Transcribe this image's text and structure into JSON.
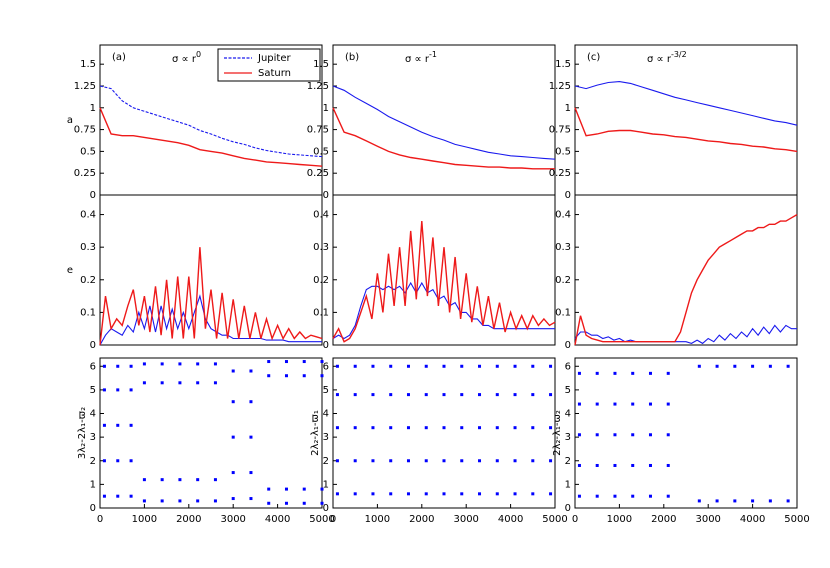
{
  "chart_data": [
    {
      "type": "line",
      "title": "(a)",
      "annotation": "σ ∝ r",
      "annotation_exponent": "0",
      "ylabel": "a",
      "legend": "top-right",
      "x": [
        0,
        250,
        500,
        750,
        1000,
        1250,
        1500,
        1750,
        2000,
        2250,
        2500,
        2750,
        3000,
        3250,
        3500,
        3750,
        4000,
        4250,
        4500,
        4750,
        5000
      ],
      "xlim": [
        0,
        5000
      ],
      "ylim": [
        0,
        1.72
      ],
      "yticks": [
        0,
        0.25,
        0.5,
        0.75,
        1,
        1.25,
        1.5
      ],
      "series": [
        {
          "name": "Jupiter",
          "color": "#1a1aee",
          "dashed": true,
          "values": [
            1.25,
            1.22,
            1.08,
            1.0,
            0.96,
            0.92,
            0.88,
            0.84,
            0.8,
            0.74,
            0.7,
            0.65,
            0.61,
            0.58,
            0.54,
            0.51,
            0.49,
            0.47,
            0.46,
            0.45,
            0.44
          ]
        },
        {
          "name": "Saturn",
          "color": "#ee1a1a",
          "values": [
            1.0,
            0.7,
            0.68,
            0.68,
            0.66,
            0.64,
            0.62,
            0.6,
            0.57,
            0.52,
            0.5,
            0.48,
            0.45,
            0.42,
            0.4,
            0.38,
            0.37,
            0.36,
            0.35,
            0.34,
            0.33
          ]
        }
      ]
    },
    {
      "type": "line",
      "ylabel": "e",
      "x": [
        0,
        125,
        250,
        375,
        500,
        625,
        750,
        875,
        1000,
        1125,
        1250,
        1375,
        1500,
        1625,
        1750,
        1875,
        2000,
        2125,
        2250,
        2375,
        2500,
        2625,
        2750,
        2875,
        3000,
        3125,
        3250,
        3375,
        3500,
        3625,
        3750,
        3875,
        4000,
        4125,
        4250,
        4375,
        4500,
        4625,
        4750,
        4875,
        5000
      ],
      "xlim": [
        0,
        5000
      ],
      "ylim": [
        0,
        0.46
      ],
      "yticks": [
        0,
        0.1,
        0.2,
        0.3,
        0.4
      ],
      "series": [
        {
          "name": "Jupiter",
          "color": "#1a1aee",
          "values": [
            0,
            0.03,
            0.05,
            0.04,
            0.03,
            0.06,
            0.04,
            0.1,
            0.05,
            0.12,
            0.04,
            0.12,
            0.05,
            0.11,
            0.05,
            0.1,
            0.05,
            0.1,
            0.15,
            0.08,
            0.05,
            0.04,
            0.03,
            0.03,
            0.02,
            0.02,
            0.02,
            0.02,
            0.02,
            0.02,
            0.015,
            0.015,
            0.015,
            0.015,
            0.01,
            0.01,
            0.01,
            0.01,
            0.01,
            0.01,
            0.01
          ]
        },
        {
          "name": "Saturn",
          "color": "#ee1a1a",
          "values": [
            0,
            0.15,
            0.05,
            0.08,
            0.06,
            0.12,
            0.17,
            0.06,
            0.15,
            0.04,
            0.18,
            0.03,
            0.2,
            0.02,
            0.21,
            0.02,
            0.21,
            0.02,
            0.3,
            0.05,
            0.17,
            0.02,
            0.16,
            0.02,
            0.14,
            0.02,
            0.12,
            0.02,
            0.1,
            0.02,
            0.08,
            0.02,
            0.06,
            0.02,
            0.05,
            0.02,
            0.04,
            0.02,
            0.03,
            0.025,
            0.02
          ]
        }
      ]
    },
    {
      "type": "scatter",
      "ylabel": "3λ₂-2λ₁-ϖ₂",
      "color": "#0000ff",
      "x": [
        100,
        100,
        100,
        100,
        100,
        400,
        400,
        400,
        400,
        400,
        700,
        700,
        700,
        700,
        700,
        1000,
        1000,
        1000,
        1000,
        1400,
        1400,
        1400,
        1400,
        1800,
        1800,
        1800,
        1800,
        2200,
        2200,
        2200,
        2200,
        2600,
        2600,
        2600,
        2600,
        3000,
        3000,
        3000,
        3000,
        3000,
        3400,
        3400,
        3400,
        3400,
        3400,
        3800,
        3800,
        3800,
        3800,
        4200,
        4200,
        4200,
        4200,
        4600,
        4600,
        4600,
        4600,
        5000,
        5000,
        5000,
        5000
      ],
      "values": [
        0.5,
        2,
        3.5,
        5,
        6,
        0.5,
        2,
        3.5,
        5,
        6,
        0.5,
        2,
        3.5,
        5,
        6,
        0.3,
        1.2,
        5.3,
        6.1,
        0.3,
        1.2,
        5.3,
        6.1,
        0.3,
        1.2,
        5.3,
        6.1,
        0.3,
        1.2,
        5.3,
        6.1,
        0.3,
        1.2,
        5.3,
        6.1,
        0.4,
        1.5,
        3,
        4.5,
        5.8,
        0.4,
        1.5,
        3,
        4.5,
        5.8,
        0.2,
        0.8,
        5.6,
        6.2,
        0.2,
        0.8,
        5.6,
        6.2,
        0.2,
        0.8,
        5.6,
        6.2,
        0.2,
        0.8,
        5.6,
        6.2
      ],
      "xlim": [
        0,
        5000
      ],
      "ylim": [
        0,
        6.35
      ],
      "yticks": [
        0,
        1,
        2,
        3,
        4,
        5,
        6
      ],
      "xticks": [
        0,
        1000,
        2000,
        3000,
        4000,
        5000
      ]
    },
    {
      "type": "line",
      "title": "(b)",
      "annotation": "σ ∝ r",
      "annotation_exponent": "-1",
      "x": [
        0,
        250,
        500,
        750,
        1000,
        1250,
        1500,
        1750,
        2000,
        2250,
        2500,
        2750,
        3000,
        3250,
        3500,
        3750,
        4000,
        4250,
        4500,
        4750,
        5000
      ],
      "xlim": [
        0,
        5000
      ],
      "ylim": [
        0,
        1.72
      ],
      "yticks": [
        0,
        0.25,
        0.5,
        0.75,
        1,
        1.25,
        1.5
      ],
      "series": [
        {
          "name": "Jupiter",
          "color": "#1a1aee",
          "values": [
            1.25,
            1.2,
            1.12,
            1.05,
            0.98,
            0.9,
            0.84,
            0.78,
            0.72,
            0.67,
            0.63,
            0.58,
            0.55,
            0.52,
            0.49,
            0.47,
            0.45,
            0.44,
            0.43,
            0.42,
            0.41
          ]
        },
        {
          "name": "Saturn",
          "color": "#ee1a1a",
          "values": [
            1.0,
            0.72,
            0.68,
            0.62,
            0.56,
            0.5,
            0.46,
            0.43,
            0.41,
            0.39,
            0.37,
            0.35,
            0.34,
            0.33,
            0.32,
            0.32,
            0.31,
            0.31,
            0.3,
            0.3,
            0.3
          ]
        }
      ]
    },
    {
      "type": "line",
      "x": [
        0,
        125,
        250,
        375,
        500,
        625,
        750,
        875,
        1000,
        1125,
        1250,
        1375,
        1500,
        1625,
        1750,
        1875,
        2000,
        2125,
        2250,
        2375,
        2500,
        2625,
        2750,
        2875,
        3000,
        3125,
        3250,
        3375,
        3500,
        3625,
        3750,
        3875,
        4000,
        4125,
        4250,
        4375,
        4500,
        4625,
        4750,
        4875,
        5000
      ],
      "xlim": [
        0,
        5000
      ],
      "ylim": [
        0,
        0.46
      ],
      "yticks": [
        0,
        0.1,
        0.2,
        0.3,
        0.4
      ],
      "series": [
        {
          "name": "Jupiter",
          "color": "#1a1aee",
          "values": [
            0.02,
            0.03,
            0.02,
            0.03,
            0.06,
            0.12,
            0.17,
            0.18,
            0.18,
            0.17,
            0.18,
            0.17,
            0.18,
            0.16,
            0.19,
            0.16,
            0.19,
            0.16,
            0.17,
            0.14,
            0.15,
            0.12,
            0.13,
            0.1,
            0.1,
            0.08,
            0.08,
            0.06,
            0.06,
            0.05,
            0.05,
            0.05,
            0.05,
            0.05,
            0.05,
            0.05,
            0.05,
            0.05,
            0.05,
            0.05,
            0.05
          ]
        },
        {
          "name": "Saturn",
          "color": "#ee1a1a",
          "values": [
            0.02,
            0.05,
            0.01,
            0.02,
            0.05,
            0.1,
            0.15,
            0.08,
            0.22,
            0.1,
            0.28,
            0.12,
            0.3,
            0.12,
            0.35,
            0.14,
            0.38,
            0.15,
            0.33,
            0.12,
            0.3,
            0.1,
            0.27,
            0.08,
            0.22,
            0.07,
            0.18,
            0.06,
            0.15,
            0.05,
            0.13,
            0.04,
            0.1,
            0.05,
            0.09,
            0.05,
            0.09,
            0.06,
            0.08,
            0.06,
            0.07
          ]
        }
      ]
    },
    {
      "type": "scatter",
      "ylabel": "2λ₂-λ₁-ϖ₁",
      "color": "#0000ff",
      "x": [
        100,
        100,
        100,
        100,
        100,
        500,
        500,
        500,
        500,
        500,
        900,
        900,
        900,
        900,
        900,
        1300,
        1300,
        1300,
        1300,
        1300,
        1700,
        1700,
        1700,
        1700,
        1700,
        2100,
        2100,
        2100,
        2100,
        2100,
        2500,
        2500,
        2500,
        2500,
        2500,
        2900,
        2900,
        2900,
        2900,
        2900,
        3300,
        3300,
        3300,
        3300,
        3300,
        3700,
        3700,
        3700,
        3700,
        3700,
        4100,
        4100,
        4100,
        4100,
        4100,
        4500,
        4500,
        4500,
        4500,
        4500,
        4900,
        4900,
        4900,
        4900,
        4900
      ],
      "values": [
        0.6,
        2,
        3.4,
        4.8,
        6,
        0.6,
        2,
        3.4,
        4.8,
        6,
        0.6,
        2,
        3.4,
        4.8,
        6,
        0.6,
        2,
        3.4,
        4.8,
        6,
        0.6,
        2,
        3.4,
        4.8,
        6,
        0.6,
        2,
        3.4,
        4.8,
        6,
        0.6,
        2,
        3.4,
        4.8,
        6,
        0.6,
        2,
        3.4,
        4.8,
        6,
        0.6,
        2,
        3.4,
        4.8,
        6,
        0.6,
        2,
        3.4,
        4.8,
        6,
        0.6,
        2,
        3.4,
        4.8,
        6,
        0.6,
        2,
        3.4,
        4.8,
        6,
        0.6,
        2,
        3.4,
        4.8,
        6
      ],
      "xlim": [
        0,
        5000
      ],
      "ylim": [
        0,
        6.35
      ],
      "yticks": [
        0,
        1,
        2,
        3,
        4,
        5,
        6
      ],
      "xticks": [
        0,
        1000,
        2000,
        3000,
        4000,
        5000
      ]
    },
    {
      "type": "line",
      "title": "(c)",
      "annotation": "σ ∝ r",
      "annotation_exponent": "-3/2",
      "x": [
        0,
        250,
        500,
        750,
        1000,
        1250,
        1500,
        1750,
        2000,
        2250,
        2500,
        2750,
        3000,
        3250,
        3500,
        3750,
        4000,
        4250,
        4500,
        4750,
        5000
      ],
      "xlim": [
        0,
        5000
      ],
      "ylim": [
        0,
        1.72
      ],
      "yticks": [
        0,
        0.25,
        0.5,
        0.75,
        1,
        1.25,
        1.5
      ],
      "series": [
        {
          "name": "Jupiter",
          "color": "#1a1aee",
          "values": [
            1.25,
            1.22,
            1.26,
            1.29,
            1.3,
            1.28,
            1.24,
            1.2,
            1.16,
            1.12,
            1.09,
            1.06,
            1.03,
            1.0,
            0.97,
            0.94,
            0.91,
            0.88,
            0.85,
            0.83,
            0.8
          ]
        },
        {
          "name": "Saturn",
          "color": "#ee1a1a",
          "values": [
            1.0,
            0.68,
            0.7,
            0.73,
            0.74,
            0.74,
            0.72,
            0.7,
            0.69,
            0.67,
            0.66,
            0.64,
            0.62,
            0.61,
            0.59,
            0.58,
            0.56,
            0.55,
            0.53,
            0.52,
            0.5
          ]
        }
      ]
    },
    {
      "type": "line",
      "x": [
        0,
        125,
        250,
        375,
        500,
        625,
        750,
        875,
        1000,
        1125,
        1250,
        1375,
        1500,
        1625,
        1750,
        1875,
        2000,
        2125,
        2250,
        2375,
        2500,
        2625,
        2750,
        2875,
        3000,
        3125,
        3250,
        3375,
        3500,
        3625,
        3750,
        3875,
        4000,
        4125,
        4250,
        4375,
        4500,
        4625,
        4750,
        4875,
        5000
      ],
      "xlim": [
        0,
        5000
      ],
      "ylim": [
        0,
        0.46
      ],
      "yticks": [
        0,
        0.1,
        0.2,
        0.3,
        0.4
      ],
      "series": [
        {
          "name": "Jupiter",
          "color": "#1a1aee",
          "values": [
            0.02,
            0.04,
            0.04,
            0.03,
            0.03,
            0.02,
            0.025,
            0.015,
            0.02,
            0.01,
            0.015,
            0.01,
            0.01,
            0.01,
            0.01,
            0.01,
            0.01,
            0.01,
            0.01,
            0.01,
            0.01,
            0.005,
            0.015,
            0.005,
            0.02,
            0.01,
            0.03,
            0.015,
            0.035,
            0.02,
            0.04,
            0.025,
            0.05,
            0.03,
            0.055,
            0.035,
            0.06,
            0.04,
            0.06,
            0.05,
            0.05
          ]
        },
        {
          "name": "Saturn",
          "color": "#ee1a1a",
          "values": [
            0,
            0.09,
            0.03,
            0.02,
            0.015,
            0.01,
            0.01,
            0.01,
            0.01,
            0.01,
            0.01,
            0.01,
            0.01,
            0.01,
            0.01,
            0.01,
            0.01,
            0.01,
            0.01,
            0.04,
            0.1,
            0.16,
            0.2,
            0.23,
            0.26,
            0.28,
            0.3,
            0.31,
            0.32,
            0.33,
            0.34,
            0.35,
            0.35,
            0.36,
            0.36,
            0.37,
            0.37,
            0.38,
            0.38,
            0.39,
            0.4
          ]
        }
      ]
    },
    {
      "type": "scatter",
      "ylabel": "2λ₂-λ₁-ϖ₂",
      "color": "#0000ff",
      "x": [
        100,
        100,
        100,
        100,
        100,
        500,
        500,
        500,
        500,
        500,
        900,
        900,
        900,
        900,
        900,
        1300,
        1300,
        1300,
        1300,
        1300,
        1700,
        1700,
        1700,
        1700,
        1700,
        2100,
        2100,
        2100,
        2100,
        2100,
        2800,
        2800,
        3200,
        3200,
        3600,
        3600,
        4000,
        4000,
        4400,
        4400,
        4800,
        4800
      ],
      "values": [
        0.5,
        1.8,
        3.1,
        4.4,
        5.7,
        0.5,
        1.8,
        3.1,
        4.4,
        5.7,
        0.5,
        1.8,
        3.1,
        4.4,
        5.7,
        0.5,
        1.8,
        3.1,
        4.4,
        5.7,
        0.5,
        1.8,
        3.1,
        4.4,
        5.7,
        0.5,
        1.8,
        3.1,
        4.4,
        5.7,
        0.3,
        6,
        0.3,
        6,
        0.3,
        6,
        0.3,
        6,
        0.3,
        6,
        0.3,
        6
      ],
      "xlim": [
        0,
        5000
      ],
      "ylim": [
        0,
        6.35
      ],
      "yticks": [
        0,
        1,
        2,
        3,
        4,
        5,
        6
      ],
      "xticks": [
        0,
        1000,
        2000,
        3000,
        4000,
        5000
      ]
    }
  ]
}
